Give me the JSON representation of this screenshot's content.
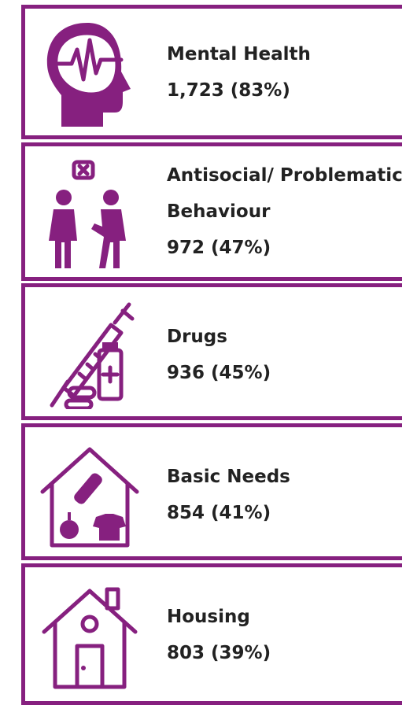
{
  "items": [
    {
      "label": "Mental Health",
      "stat": "1,723 (83%)"
    },
    {
      "label": "Antisocial/ Problematic Behaviour",
      "stat": "972 (47%)"
    },
    {
      "label": "Drugs",
      "stat": "936 (45%)"
    },
    {
      "label": "Basic Needs",
      "stat": "854 (41%)"
    },
    {
      "label": "Housing",
      "stat": "803 (39%)"
    }
  ]
}
